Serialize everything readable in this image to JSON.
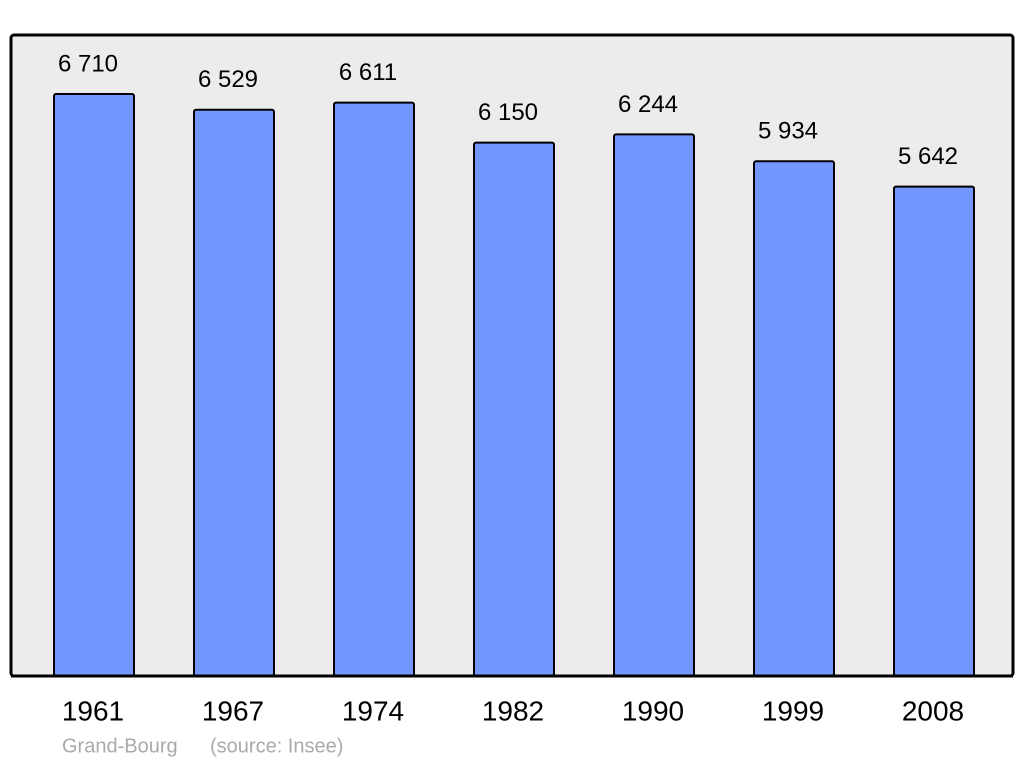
{
  "chart_data": {
    "type": "bar",
    "categories": [
      "1961",
      "1967",
      "1974",
      "1982",
      "1990",
      "1999",
      "2008"
    ],
    "values": [
      6710,
      6529,
      6611,
      6150,
      6244,
      5934,
      5642
    ],
    "value_labels": [
      "6 710",
      "6 529",
      "6 611",
      "6 150",
      "6 244",
      "5 934",
      "5 642"
    ],
    "color": "#7396ff",
    "annotations": [
      "Grand-Bourg",
      "(source: Insee)"
    ]
  }
}
